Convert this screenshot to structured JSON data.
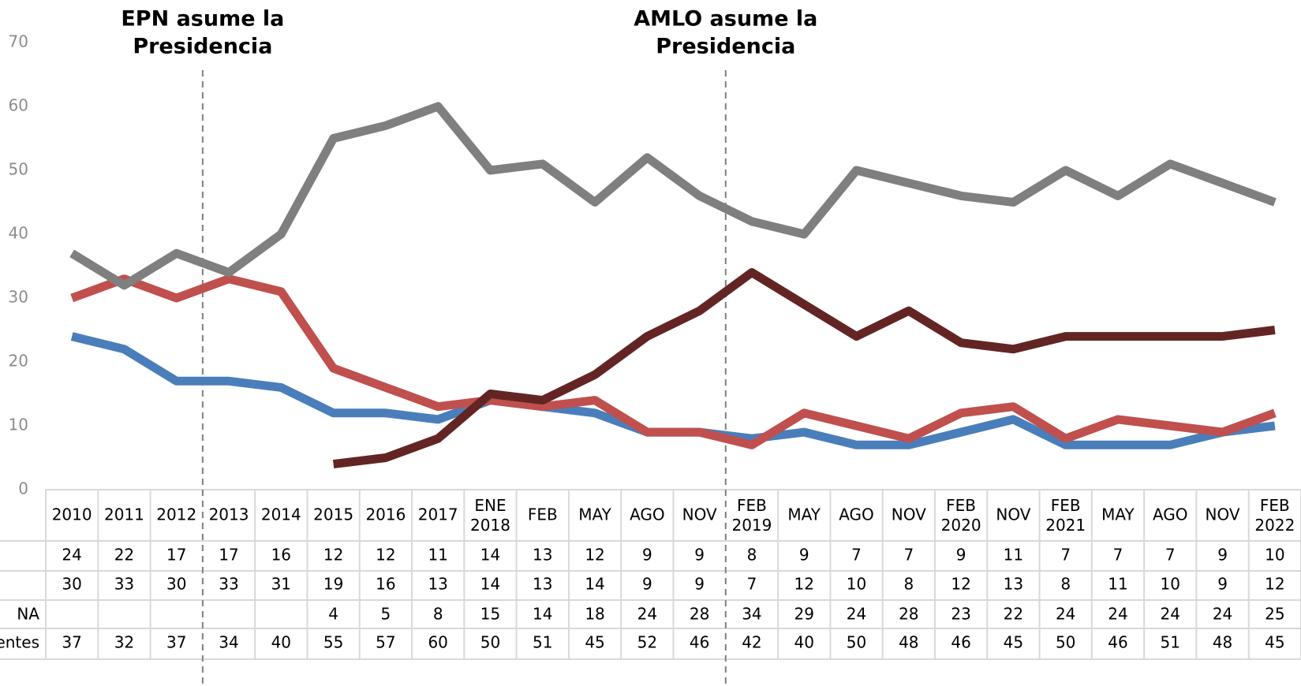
{
  "chart_data": {
    "type": "line",
    "annotations": [
      [
        "EPN asume la",
        "Presidencia"
      ],
      [
        "AMLO asume la",
        "Presidencia"
      ]
    ],
    "categories": [
      "2010",
      "2011",
      "2012",
      "2013",
      "2014",
      "2015",
      "2016",
      "2017",
      "ENE 2018",
      "FEB",
      "MAY",
      "AGO",
      "NOV",
      "FEB 2019",
      "MAY",
      "AGO",
      "NOV",
      "FEB 2020",
      "NOV",
      "FEB 2021",
      "MAY",
      "AGO",
      "NOV",
      "FEB 2022"
    ],
    "series": [
      {
        "name": null,
        "color": "#4a7ebb",
        "values": [
          24,
          22,
          17,
          17,
          16,
          12,
          12,
          11,
          14,
          13,
          12,
          9,
          9,
          8,
          9,
          7,
          7,
          9,
          11,
          7,
          7,
          7,
          9,
          10
        ]
      },
      {
        "name": null,
        "color": "#c0504d",
        "values": [
          30,
          33,
          30,
          33,
          31,
          19,
          16,
          13,
          14,
          13,
          14,
          9,
          9,
          7,
          12,
          10,
          8,
          12,
          13,
          8,
          11,
          10,
          9,
          12
        ]
      },
      {
        "name": "NA",
        "color": "#632523",
        "values": [
          null,
          null,
          null,
          null,
          null,
          4,
          5,
          8,
          15,
          14,
          18,
          24,
          28,
          34,
          29,
          24,
          28,
          23,
          22,
          24,
          24,
          24,
          24,
          25
        ]
      },
      {
        "name": "entes",
        "color": "#7f7f7f",
        "values": [
          37,
          32,
          37,
          34,
          40,
          55,
          57,
          60,
          50,
          51,
          45,
          52,
          46,
          42,
          40,
          50,
          48,
          46,
          45,
          50,
          46,
          51,
          48,
          45
        ]
      }
    ],
    "ylim": [
      0,
      70
    ],
    "yticks": [
      0,
      10,
      20,
      30,
      40,
      50,
      60,
      70
    ]
  }
}
